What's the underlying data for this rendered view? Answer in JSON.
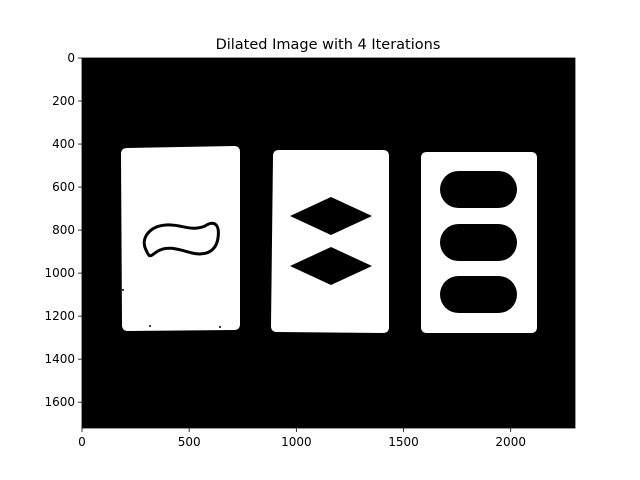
{
  "chart_data": {
    "type": "image",
    "title": "Dilated Image with 4 Iterations",
    "image_extent": {
      "width": 2300,
      "height": 1720
    },
    "xlim": [
      0,
      2300
    ],
    "ylim": [
      1720,
      0
    ],
    "xticks": [
      0,
      500,
      1000,
      1500,
      2000
    ],
    "yticks": [
      0,
      200,
      400,
      600,
      800,
      1000,
      1200,
      1400,
      1600
    ],
    "colormap": "gray",
    "colors": {
      "background": "#000000",
      "foreground": "#ffffff"
    },
    "cards": [
      {
        "name": "card-left-squiggle",
        "symbol": "squiggle",
        "count": 1
      },
      {
        "name": "card-middle-diamonds",
        "symbol": "diamond",
        "count": 2
      },
      {
        "name": "card-right-ovals",
        "symbol": "oval",
        "count": 3
      }
    ]
  }
}
